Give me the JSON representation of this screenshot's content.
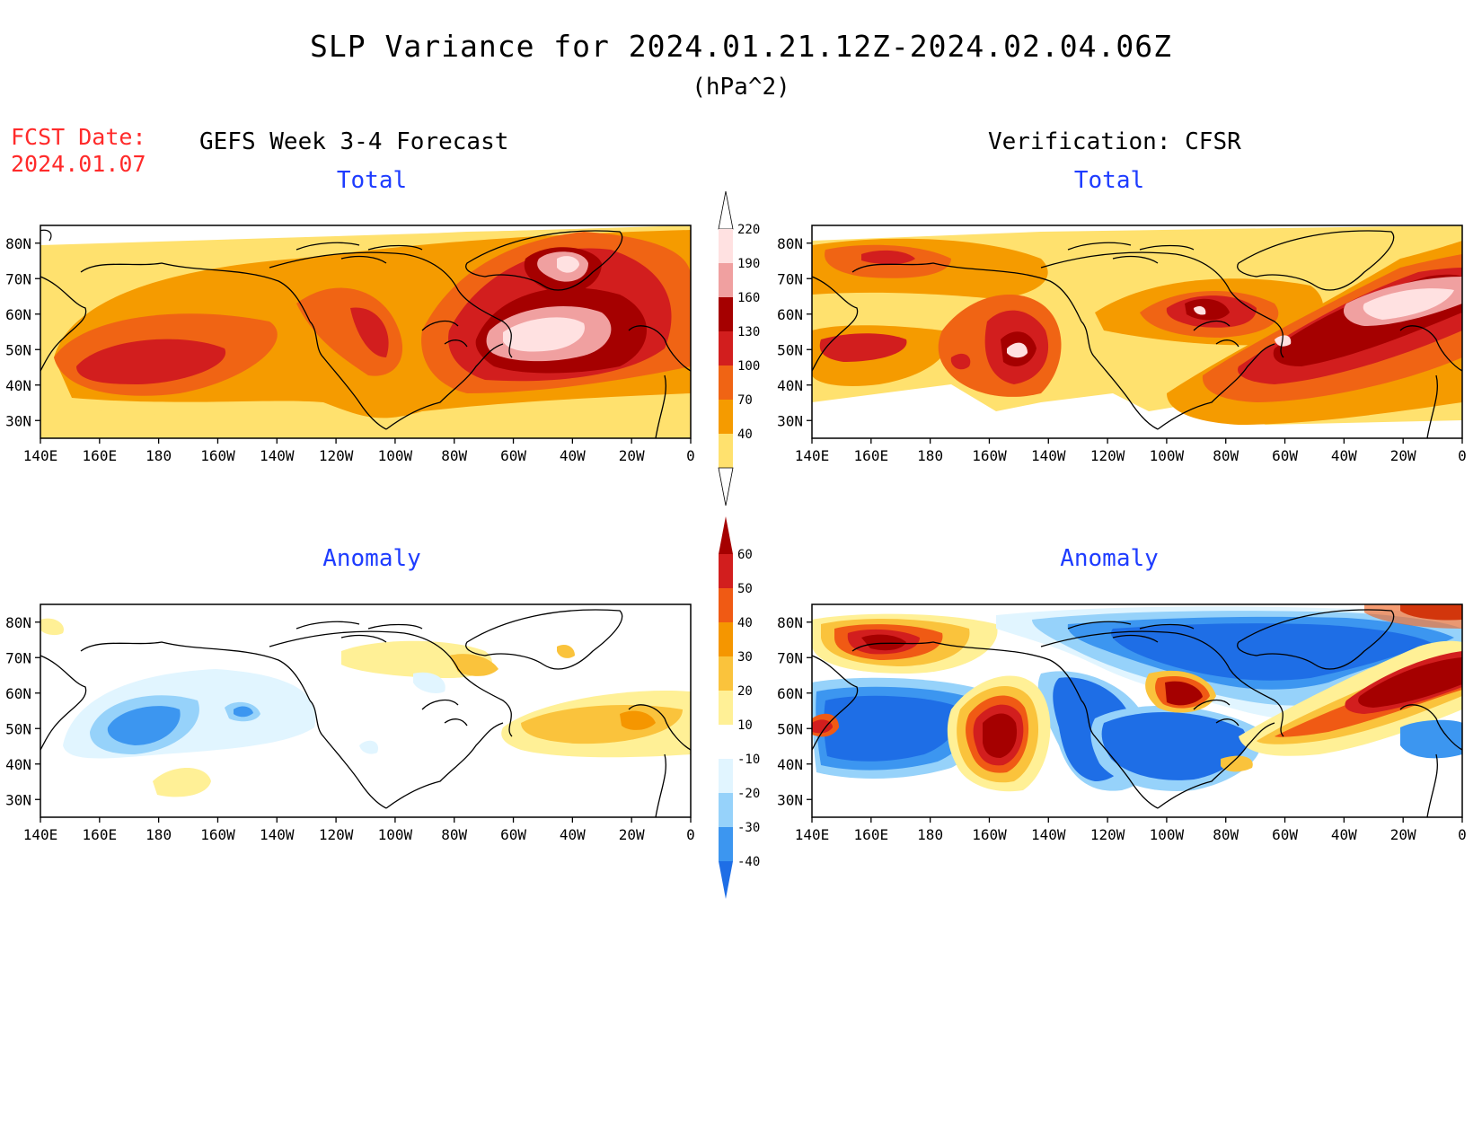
{
  "header": {
    "title": "SLP Variance for 2024.01.21.12Z-2024.02.04.06Z",
    "units": "(hPa^2)",
    "fcst_label_line1": "FCST Date:",
    "fcst_label_line2": "2024.01.07",
    "left_heading": "GEFS Week 3-4 Forecast",
    "right_heading": "Verification: CFSR"
  },
  "panels": [
    {
      "id": "gefs-total",
      "title": "Total"
    },
    {
      "id": "cfsr-total",
      "title": "Total"
    },
    {
      "id": "gefs-anomaly",
      "title": "Anomaly"
    },
    {
      "id": "cfsr-anomaly",
      "title": "Anomaly"
    }
  ],
  "axes": {
    "lat_labels": [
      "80N",
      "70N",
      "60N",
      "50N",
      "40N",
      "30N"
    ],
    "lat_values": [
      80,
      70,
      60,
      50,
      40,
      30
    ],
    "lon_labels": [
      "140E",
      "160E",
      "180",
      "160W",
      "140W",
      "120W",
      "100W",
      "80W",
      "60W",
      "40W",
      "20W",
      "0"
    ],
    "lon_values": [
      140,
      160,
      180,
      200,
      220,
      240,
      260,
      280,
      300,
      320,
      340,
      360
    ],
    "lat_range": [
      25,
      85
    ],
    "lon_range": [
      140,
      360
    ]
  },
  "colorbars": {
    "total": {
      "levels": [
        "220",
        "190",
        "160",
        "130",
        "100",
        "70",
        "40"
      ],
      "colors": [
        "#ffffff",
        "#ffe1e1",
        "#f0a0a0",
        "#a50000",
        "#d21e1e",
        "#f06414",
        "#f59b00",
        "#ffe16e",
        "#ffffff"
      ]
    },
    "anomaly": {
      "levels": [
        "60",
        "50",
        "40",
        "30",
        "20",
        "10",
        "-10",
        "-20",
        "-30",
        "-40"
      ],
      "colors": [
        "#a50000",
        "#d21e1e",
        "#f05a14",
        "#f59600",
        "#fac33c",
        "#fff096",
        "#ffffff",
        "#e1f5ff",
        "#96d2fa",
        "#3c96f0",
        "#1e6ee6"
      ]
    }
  }
}
